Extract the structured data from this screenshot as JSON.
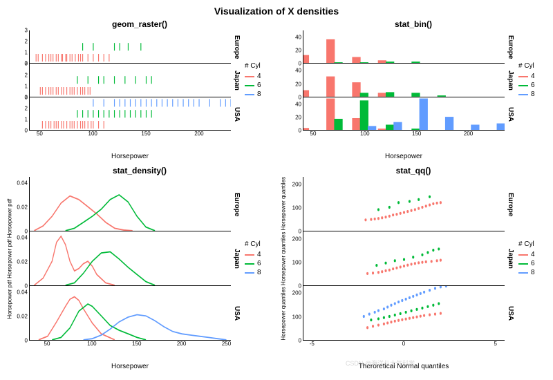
{
  "main_title": "Visualization of X densities",
  "watermark": "CSDN @海洋与大气科学",
  "colors": {
    "c4": "#f8766d",
    "c6": "#00ba38",
    "c8": "#619cff",
    "axis": "#000000",
    "bg": "#ffffff"
  },
  "font": {
    "title_size": 14,
    "subtitle_size": 12,
    "label_size": 10,
    "tick_size": 8
  },
  "legend": {
    "title": "# Cyl",
    "items": [
      {
        "label": "4",
        "color": "#f8766d"
      },
      {
        "label": "6",
        "color": "#00ba38"
      },
      {
        "label": "8",
        "color": "#619cff"
      }
    ]
  },
  "facets": [
    "Europe",
    "Japan",
    "USA"
  ],
  "panels": {
    "raster": {
      "title": "geom_raster()",
      "xlabel": "Horsepower",
      "xlim": [
        40,
        230
      ],
      "xticks": [
        50,
        100,
        150,
        200
      ],
      "ylim": [
        0,
        3
      ],
      "yticks": [
        0,
        1,
        2,
        3
      ],
      "data": {
        "Europe": {
          "c4": [
            46,
            48,
            52,
            55,
            58,
            60,
            62,
            65,
            67,
            70,
            71,
            74,
            75,
            78,
            80,
            83,
            86,
            88,
            90,
            95,
            100,
            105,
            110,
            115
          ],
          "c6": [
            90,
            100,
            120,
            125,
            133,
            145
          ],
          "c8": []
        },
        "Japan": {
          "c4": [
            50,
            52,
            55,
            58,
            60,
            62,
            65,
            67,
            70,
            72,
            75,
            78,
            80,
            82,
            85,
            88,
            90,
            92,
            95,
            97
          ],
          "c6": [
            85,
            95,
            105,
            110,
            120,
            130,
            140,
            150,
            155
          ],
          "c8": []
        },
        "USA": {
          "c4": [
            52,
            55,
            58,
            60,
            63,
            65,
            67,
            70,
            72,
            75,
            78,
            80,
            82,
            85,
            88,
            90,
            92,
            95,
            98,
            100,
            105,
            110
          ],
          "c6": [
            85,
            90,
            95,
            100,
            105,
            110,
            115,
            120,
            125,
            130,
            135,
            140,
            145,
            150,
            155
          ],
          "c8": [
            100,
            110,
            120,
            125,
            130,
            135,
            140,
            145,
            150,
            155,
            160,
            165,
            170,
            175,
            180,
            185,
            190,
            195,
            200,
            210,
            220,
            225,
            230
          ]
        }
      }
    },
    "bin": {
      "title": "stat_bin()",
      "xlabel": "Horsepower",
      "xlim": [
        40,
        235
      ],
      "xticks": [
        50,
        100,
        150,
        200
      ],
      "ylim": [
        0,
        50
      ],
      "yticks": [
        0,
        20,
        40
      ],
      "binwidth": 25,
      "data": {
        "Europe": {
          "bins": [
            50,
            75,
            100,
            125,
            150,
            175,
            200,
            225
          ],
          "c4": [
            12,
            36,
            9,
            4,
            0,
            0,
            0,
            0
          ],
          "c6": [
            0,
            1,
            1,
            2,
            2,
            0,
            0,
            0
          ],
          "c8": [
            0,
            0,
            0,
            0,
            0,
            0,
            0,
            0
          ]
        },
        "Japan": {
          "bins": [
            50,
            75,
            100,
            125,
            150,
            175,
            200,
            225
          ],
          "c4": [
            9,
            30,
            21,
            5,
            0,
            0,
            0,
            0
          ],
          "c6": [
            0,
            0,
            5,
            6,
            5,
            1,
            0,
            0
          ],
          "c8": [
            0,
            0,
            0,
            0,
            0,
            0,
            0,
            0
          ]
        },
        "USA": {
          "bins": [
            50,
            75,
            100,
            125,
            150,
            175,
            200,
            225
          ],
          "c4": [
            3,
            48,
            18,
            2,
            0,
            0,
            0,
            0
          ],
          "c6": [
            0,
            17,
            45,
            8,
            2,
            0,
            0,
            0
          ],
          "c8": [
            0,
            0,
            6,
            12,
            48,
            20,
            8,
            10
          ]
        }
      }
    },
    "density": {
      "title": "stat_density()",
      "xlabel": "Horsepower",
      "ylabel": "Horsepower pdf",
      "xlim": [
        30,
        255
      ],
      "xticks": [
        50,
        100,
        150,
        200,
        250
      ],
      "ylim": [
        0,
        0.045
      ],
      "yticks": [
        0,
        0.02,
        0.04
      ],
      "data": {
        "Europe": {
          "c4": [
            [
              35,
              0
            ],
            [
              45,
              0.004
            ],
            [
              55,
              0.012
            ],
            [
              65,
              0.023
            ],
            [
              75,
              0.029
            ],
            [
              85,
              0.026
            ],
            [
              95,
              0.02
            ],
            [
              105,
              0.014
            ],
            [
              115,
              0.007
            ],
            [
              125,
              0.002
            ],
            [
              135,
              0.0005
            ],
            [
              145,
              0
            ]
          ],
          "c6": [
            [
              70,
              0
            ],
            [
              80,
              0.002
            ],
            [
              90,
              0.007
            ],
            [
              100,
              0.012
            ],
            [
              110,
              0.018
            ],
            [
              120,
              0.026
            ],
            [
              130,
              0.03
            ],
            [
              140,
              0.024
            ],
            [
              150,
              0.012
            ],
            [
              160,
              0.003
            ],
            [
              170,
              0
            ]
          ],
          "c8": []
        },
        "Japan": {
          "c4": [
            [
              35,
              0
            ],
            [
              45,
              0.006
            ],
            [
              55,
              0.02
            ],
            [
              60,
              0.036
            ],
            [
              65,
              0.041
            ],
            [
              70,
              0.034
            ],
            [
              75,
              0.02
            ],
            [
              80,
              0.012
            ],
            [
              85,
              0.014
            ],
            [
              90,
              0.018
            ],
            [
              95,
              0.02
            ],
            [
              100,
              0.016
            ],
            [
              105,
              0.009
            ],
            [
              115,
              0.002
            ],
            [
              125,
              0
            ]
          ],
          "c6": [
            [
              70,
              0
            ],
            [
              80,
              0.002
            ],
            [
              90,
              0.01
            ],
            [
              100,
              0.02
            ],
            [
              110,
              0.027
            ],
            [
              120,
              0.028
            ],
            [
              130,
              0.022
            ],
            [
              140,
              0.015
            ],
            [
              150,
              0.009
            ],
            [
              160,
              0.003
            ],
            [
              170,
              0
            ]
          ],
          "c8": []
        },
        "USA": {
          "c4": [
            [
              40,
              0
            ],
            [
              50,
              0.003
            ],
            [
              60,
              0.015
            ],
            [
              70,
              0.028
            ],
            [
              75,
              0.034
            ],
            [
              80,
              0.036
            ],
            [
              85,
              0.033
            ],
            [
              90,
              0.026
            ],
            [
              100,
              0.014
            ],
            [
              110,
              0.005
            ],
            [
              125,
              0
            ]
          ],
          "c6": [
            [
              55,
              0
            ],
            [
              65,
              0.002
            ],
            [
              75,
              0.01
            ],
            [
              85,
              0.024
            ],
            [
              95,
              0.03
            ],
            [
              100,
              0.028
            ],
            [
              110,
              0.02
            ],
            [
              120,
              0.012
            ],
            [
              130,
              0.008
            ],
            [
              140,
              0.005
            ],
            [
              150,
              0.002
            ],
            [
              160,
              0
            ]
          ],
          "c8": [
            [
              90,
              0
            ],
            [
              100,
              0.001
            ],
            [
              110,
              0.004
            ],
            [
              120,
              0.009
            ],
            [
              130,
              0.015
            ],
            [
              140,
              0.019
            ],
            [
              150,
              0.021
            ],
            [
              160,
              0.02
            ],
            [
              170,
              0.016
            ],
            [
              180,
              0.011
            ],
            [
              190,
              0.007
            ],
            [
              200,
              0.005
            ],
            [
              210,
              0.004
            ],
            [
              220,
              0.003
            ],
            [
              230,
              0.002
            ],
            [
              240,
              0.001
            ],
            [
              250,
              0
            ]
          ]
        }
      }
    },
    "qq": {
      "title": "stat_qq()",
      "xlabel": "Theroretical Normal quantiles",
      "ylabel": "Horsepower quantiles",
      "xlim": [
        -5.5,
        5.5
      ],
      "xticks": [
        -5,
        0,
        5
      ],
      "ylim": [
        0,
        230
      ],
      "yticks": [
        0,
        100,
        200
      ],
      "data": {
        "Europe": {
          "c4": [
            [
              -2.1,
              46
            ],
            [
              -1.8,
              48
            ],
            [
              -1.6,
              50
            ],
            [
              -1.4,
              52
            ],
            [
              -1.2,
              55
            ],
            [
              -1.0,
              58
            ],
            [
              -0.8,
              62
            ],
            [
              -0.6,
              67
            ],
            [
              -0.4,
              70
            ],
            [
              -0.2,
              74
            ],
            [
              0,
              78
            ],
            [
              0.2,
              82
            ],
            [
              0.4,
              86
            ],
            [
              0.6,
              90
            ],
            [
              0.8,
              95
            ],
            [
              1.0,
              100
            ],
            [
              1.2,
              105
            ],
            [
              1.4,
              110
            ],
            [
              1.6,
              115
            ],
            [
              1.8,
              118
            ],
            [
              2.0,
              120
            ]
          ],
          "c6": [
            [
              -1.4,
              90
            ],
            [
              -0.8,
              100
            ],
            [
              -0.3,
              120
            ],
            [
              0.3,
              125
            ],
            [
              0.8,
              133
            ],
            [
              1.4,
              145
            ]
          ],
          "c8": []
        },
        "Japan": {
          "c4": [
            [
              -2.0,
              50
            ],
            [
              -1.7,
              52
            ],
            [
              -1.4,
              55
            ],
            [
              -1.2,
              58
            ],
            [
              -1.0,
              62
            ],
            [
              -0.8,
              65
            ],
            [
              -0.6,
              70
            ],
            [
              -0.4,
              74
            ],
            [
              -0.2,
              78
            ],
            [
              0,
              82
            ],
            [
              0.2,
              86
            ],
            [
              0.4,
              90
            ],
            [
              0.6,
              93
            ],
            [
              0.8,
              96
            ],
            [
              1.0,
              98
            ],
            [
              1.2,
              100
            ],
            [
              1.5,
              102
            ],
            [
              1.8,
              105
            ],
            [
              2.0,
              107
            ]
          ],
          "c6": [
            [
              -1.5,
              85
            ],
            [
              -1.0,
              95
            ],
            [
              -0.5,
              105
            ],
            [
              0,
              110
            ],
            [
              0.5,
              120
            ],
            [
              1.0,
              130
            ],
            [
              1.3,
              140
            ],
            [
              1.6,
              150
            ],
            [
              1.9,
              155
            ]
          ],
          "c8": []
        },
        "USA": {
          "c4": [
            [
              -2.0,
              52
            ],
            [
              -1.7,
              58
            ],
            [
              -1.4,
              63
            ],
            [
              -1.1,
              68
            ],
            [
              -0.9,
              72
            ],
            [
              -0.7,
              76
            ],
            [
              -0.5,
              80
            ],
            [
              -0.3,
              83
            ],
            [
              -0.1,
              86
            ],
            [
              0.1,
              89
            ],
            [
              0.3,
              92
            ],
            [
              0.5,
              95
            ],
            [
              0.7,
              98
            ],
            [
              0.9,
              101
            ],
            [
              1.1,
              104
            ],
            [
              1.4,
              107
            ],
            [
              1.7,
              110
            ],
            [
              2.0,
              113
            ]
          ],
          "c6": [
            [
              -1.8,
              85
            ],
            [
              -1.4,
              90
            ],
            [
              -1.1,
              95
            ],
            [
              -0.8,
              100
            ],
            [
              -0.5,
              106
            ],
            [
              -0.2,
              112
            ],
            [
              0.1,
              118
            ],
            [
              0.4,
              124
            ],
            [
              0.7,
              130
            ],
            [
              1.0,
              136
            ],
            [
              1.3,
              142
            ],
            [
              1.6,
              148
            ],
            [
              1.9,
              155
            ]
          ],
          "c8": [
            [
              -2.2,
              100
            ],
            [
              -1.9,
              110
            ],
            [
              -1.6,
              118
            ],
            [
              -1.4,
              125
            ],
            [
              -1.1,
              132
            ],
            [
              -0.9,
              140
            ],
            [
              -0.7,
              148
            ],
            [
              -0.5,
              155
            ],
            [
              -0.3,
              162
            ],
            [
              -0.1,
              168
            ],
            [
              0.1,
              174
            ],
            [
              0.3,
              180
            ],
            [
              0.5,
              186
            ],
            [
              0.7,
              192
            ],
            [
              0.9,
              198
            ],
            [
              1.1,
              204
            ],
            [
              1.4,
              212
            ],
            [
              1.7,
              220
            ],
            [
              2.0,
              226
            ],
            [
              2.3,
              230
            ]
          ]
        }
      }
    }
  }
}
